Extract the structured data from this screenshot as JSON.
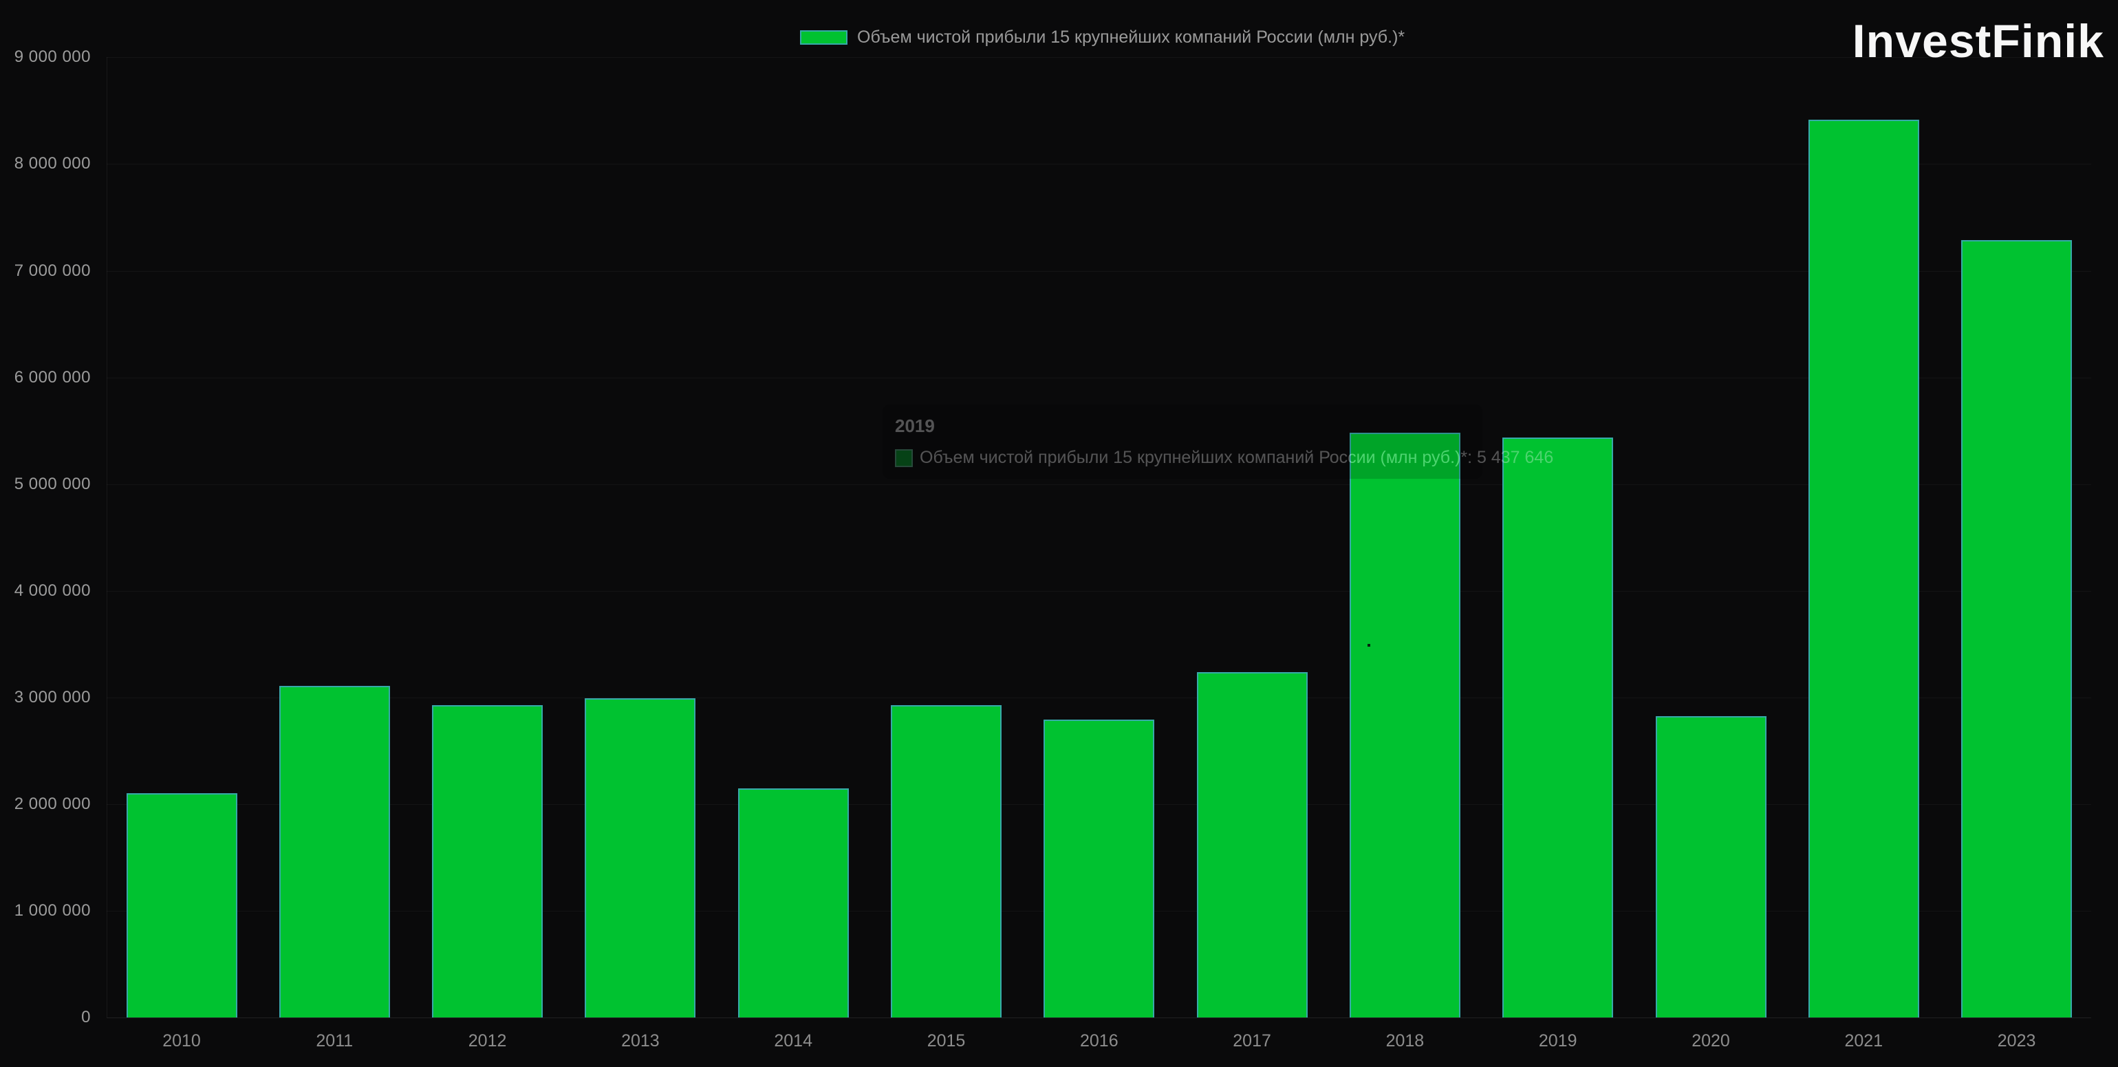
{
  "brand": {
    "logo_text": "InvestFinik"
  },
  "legend": {
    "label": "Объем чистой прибыли 15 крупнейших компаний России (млн руб.)*"
  },
  "tooltip": {
    "title": "2019",
    "label": "Объем чистой прибыли 15 крупнейших компаний России (млн руб.)*",
    "value": "5 437 646",
    "combined": "Объем чистой прибыли 15 крупнейших компаний России (млн руб.)*: 5 437 646"
  },
  "chart_data": {
    "type": "bar",
    "title": "",
    "xlabel": "",
    "ylabel": "",
    "categories": [
      "2010",
      "2011",
      "2012",
      "2013",
      "2014",
      "2015",
      "2016",
      "2017",
      "2018",
      "2019",
      "2020",
      "2021",
      "2023"
    ],
    "values": [
      2100000,
      3110000,
      2925000,
      2990000,
      2150000,
      2925000,
      2790000,
      3240000,
      5480000,
      5437646,
      2825000,
      8415000,
      7290000
    ],
    "series_name": "Объем чистой прибыли 15 крупнейших компаний России (млн руб.)*",
    "ylim": [
      0,
      9000000
    ],
    "ytick_step": 1000000,
    "ytick_labels": [
      "0",
      "1 000 000",
      "2 000 000",
      "3 000 000",
      "4 000 000",
      "5 000 000",
      "6 000 000",
      "7 000 000",
      "8 000 000",
      "9 000 000"
    ],
    "legend_position": "top-center",
    "grid": "faint horizontal gridlines",
    "background_color": "#0a0a0b",
    "bar_color": "#00c230",
    "bar_border_color": "#3aa8b0",
    "axis_text_color": "#9c9c9c",
    "highlighted_category": "2019",
    "highlighted_value": 5437646
  }
}
